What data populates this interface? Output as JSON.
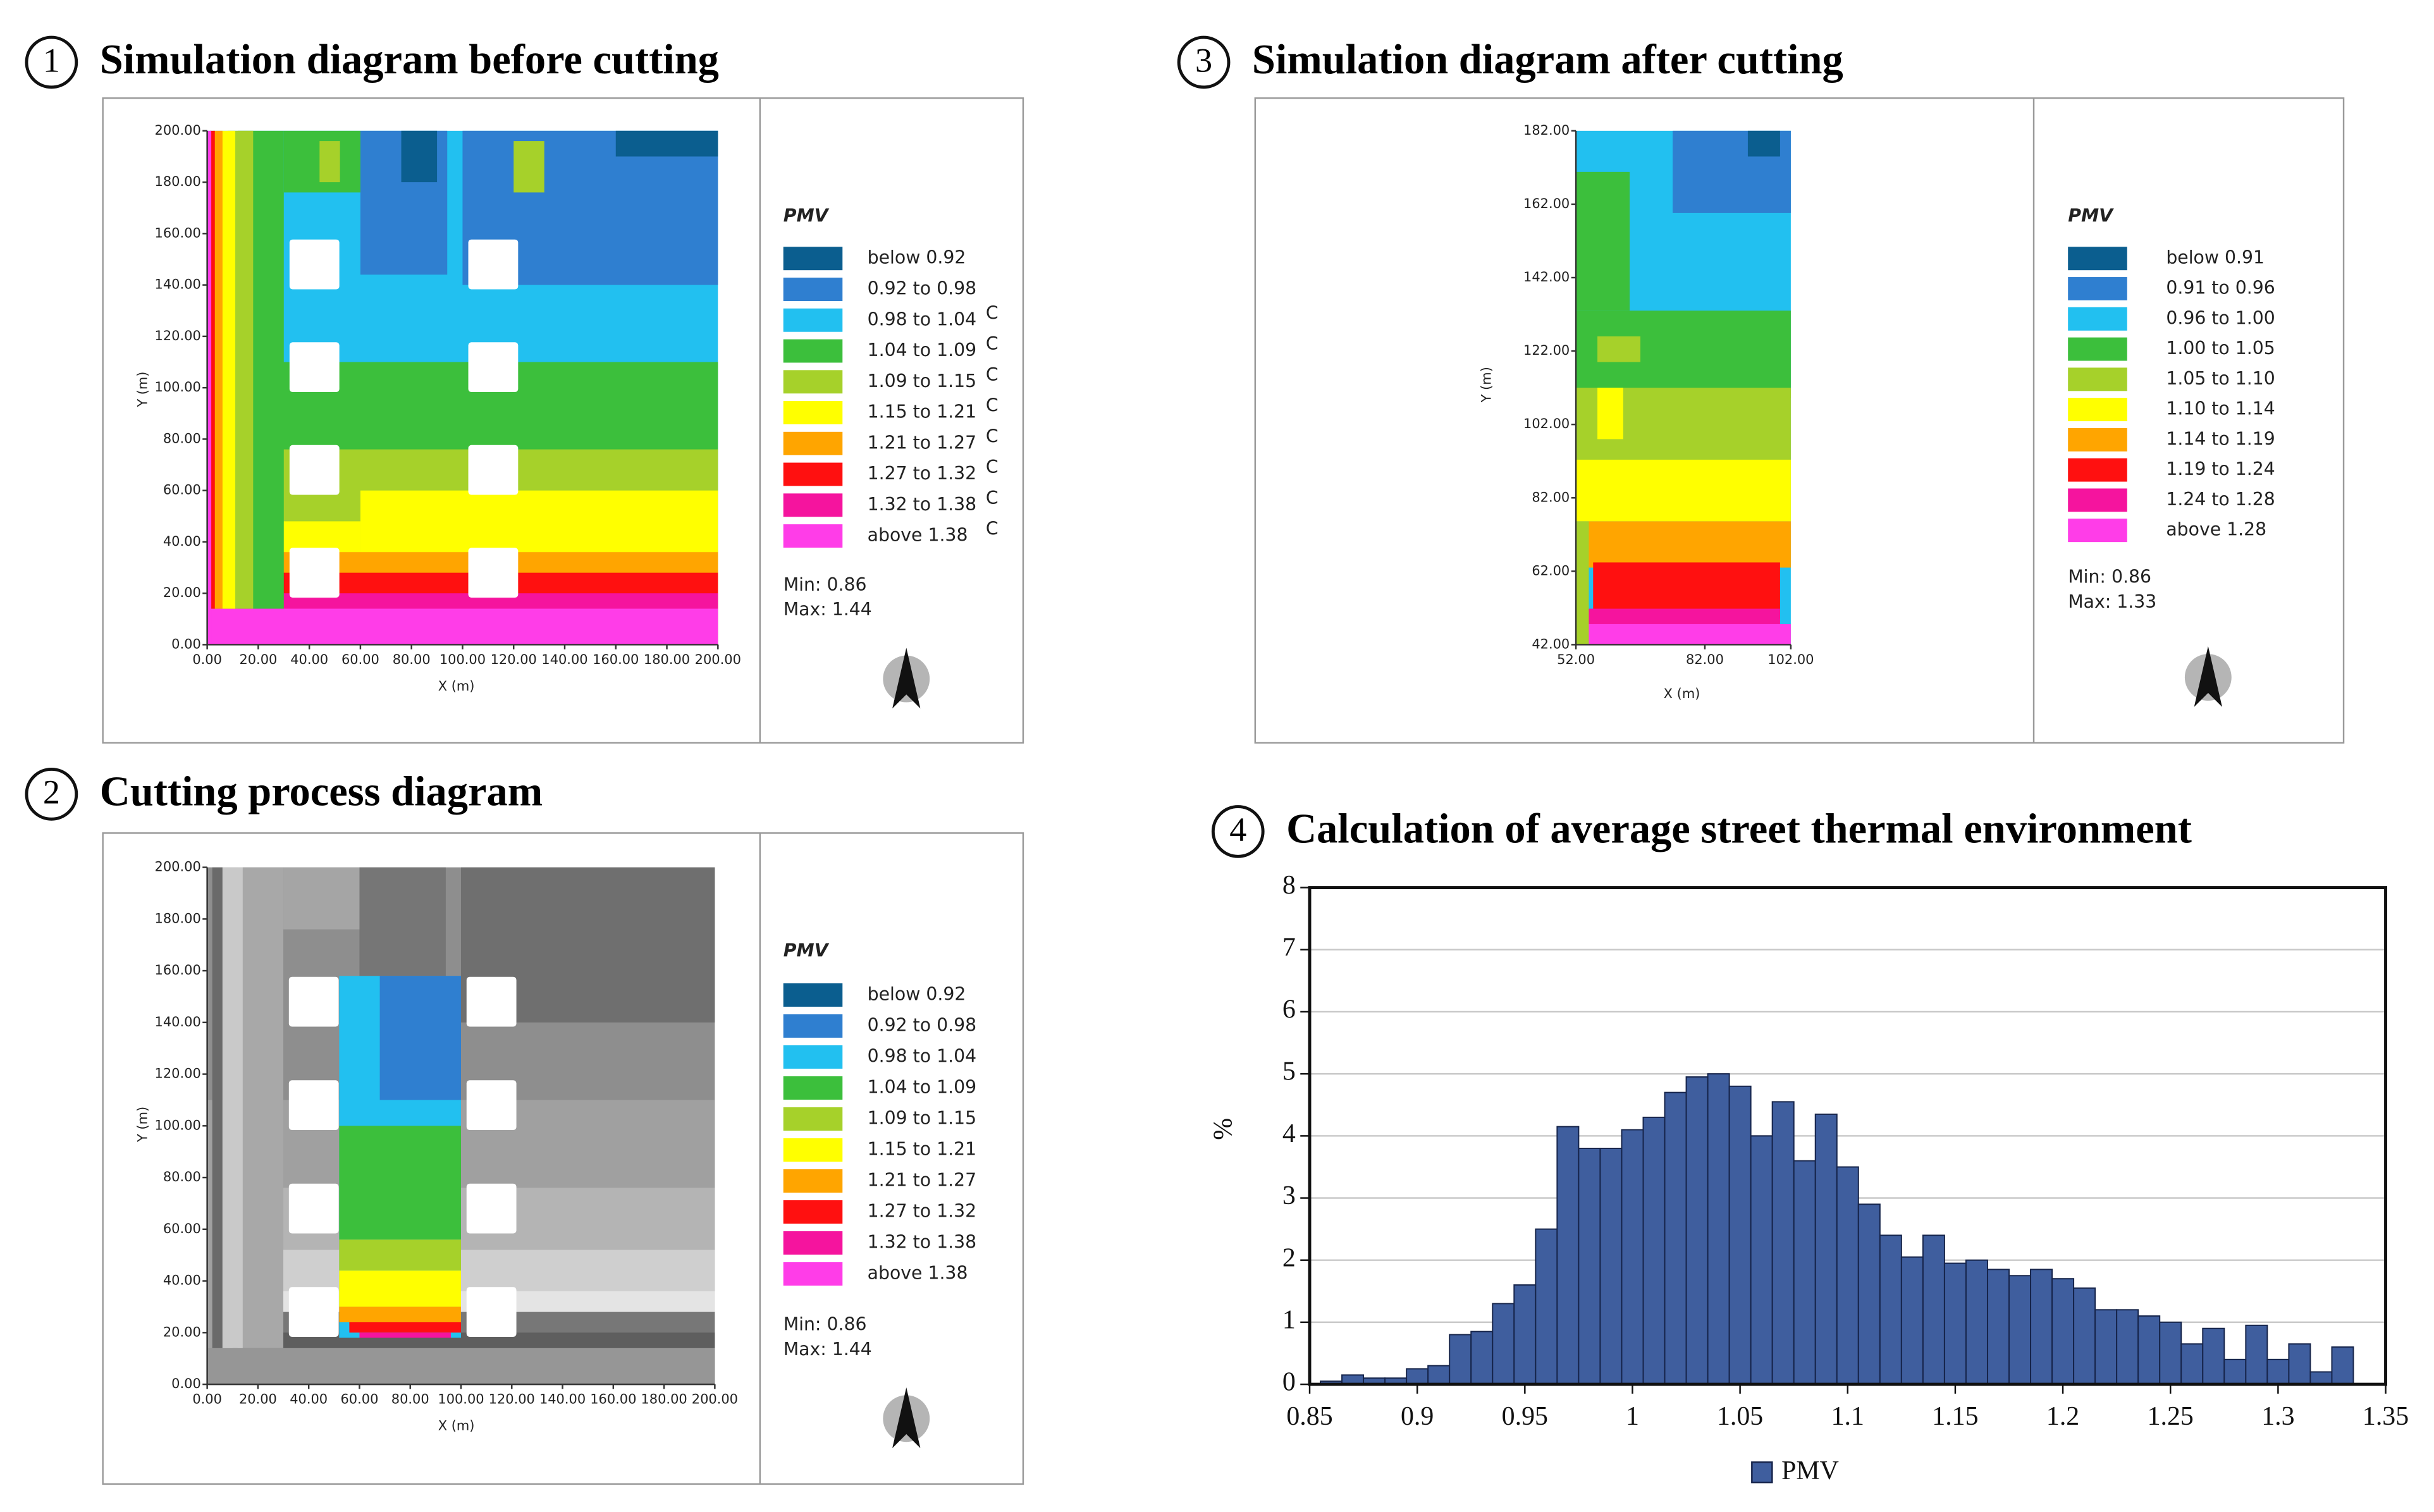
{
  "chart_data": [
    {
      "type": "heatmap",
      "number": "1",
      "title": "Simulation diagram before cutting",
      "x_label": "X (m)",
      "y_label": "Y (m)",
      "xlim": [
        0,
        200
      ],
      "ylim": [
        0,
        200
      ],
      "xticks": [
        {
          "value": 0,
          "label": "0.00"
        },
        {
          "value": 20,
          "label": "20.00"
        },
        {
          "value": 40,
          "label": "40.00"
        },
        {
          "value": 60,
          "label": "60.00"
        },
        {
          "value": 80,
          "label": "80.00"
        },
        {
          "value": 100,
          "label": "100.00"
        },
        {
          "value": 120,
          "label": "120.00"
        },
        {
          "value": 140,
          "label": "140.00"
        },
        {
          "value": 160,
          "label": "160.00"
        },
        {
          "value": 180,
          "label": "180.00"
        },
        {
          "value": 200,
          "label": "200.00"
        }
      ],
      "yticks": [
        {
          "value": 0,
          "label": "0.00"
        },
        {
          "value": 20,
          "label": "20.00"
        },
        {
          "value": 40,
          "label": "40.00"
        },
        {
          "value": 60,
          "label": "60.00"
        },
        {
          "value": 80,
          "label": "80.00"
        },
        {
          "value": 100,
          "label": "100.00"
        },
        {
          "value": 120,
          "label": "120.00"
        },
        {
          "value": 140,
          "label": "140.00"
        },
        {
          "value": 160,
          "label": "160.00"
        },
        {
          "value": 180,
          "label": "180.00"
        },
        {
          "value": 200,
          "label": "200.00"
        }
      ],
      "legend_title": "PMV",
      "legend": [
        {
          "label": "below 0.92",
          "color": "#0b5e8f"
        },
        {
          "label": "0.92 to 0.98",
          "color": "#2f7fd0"
        },
        {
          "label": "0.98 to 1.04",
          "color": "#22c0f0"
        },
        {
          "label": "1.04 to 1.09",
          "color": "#3cbf3c"
        },
        {
          "label": "1.09 to 1.15",
          "color": "#a6d12a"
        },
        {
          "label": "1.15 to 1.21",
          "color": "#ffff00"
        },
        {
          "label": "1.21 to 1.27",
          "color": "#ffa500"
        },
        {
          "label": "1.27 to 1.32",
          "color": "#ff1010"
        },
        {
          "label": "1.32 to 1.38",
          "color": "#f5149e"
        },
        {
          "label": "above 1.38",
          "color": "#ff3de8"
        }
      ],
      "stats": [
        "Min: 0.86",
        "Max: 1.44"
      ],
      "stray_labels": [
        "C",
        "C",
        "C",
        "C",
        "C",
        "C",
        "C",
        "C"
      ]
    },
    {
      "type": "heatmap",
      "number": "2",
      "title": "Cutting process diagram",
      "x_label": "X (m)",
      "y_label": "Y (m)",
      "xlim": [
        0,
        200
      ],
      "ylim": [
        0,
        200
      ],
      "xticks": [
        {
          "value": 0,
          "label": "0.00"
        },
        {
          "value": 20,
          "label": "20.00"
        },
        {
          "value": 40,
          "label": "40.00"
        },
        {
          "value": 60,
          "label": "60.00"
        },
        {
          "value": 80,
          "label": "80.00"
        },
        {
          "value": 100,
          "label": "100.00"
        },
        {
          "value": 120,
          "label": "120.00"
        },
        {
          "value": 140,
          "label": "140.00"
        },
        {
          "value": 160,
          "label": "160.00"
        },
        {
          "value": 180,
          "label": "180.00"
        },
        {
          "value": 200,
          "label": "200.00"
        }
      ],
      "yticks": [
        {
          "value": 0,
          "label": "0.00"
        },
        {
          "value": 20,
          "label": "20.00"
        },
        {
          "value": 40,
          "label": "40.00"
        },
        {
          "value": 60,
          "label": "60.00"
        },
        {
          "value": 80,
          "label": "80.00"
        },
        {
          "value": 100,
          "label": "100.00"
        },
        {
          "value": 120,
          "label": "120.00"
        },
        {
          "value": 140,
          "label": "140.00"
        },
        {
          "value": 160,
          "label": "160.00"
        },
        {
          "value": 180,
          "label": "180.00"
        },
        {
          "value": 200,
          "label": "200.00"
        }
      ],
      "legend_title": "PMV",
      "legend": [
        {
          "label": "below 0.92",
          "color": "#0b5e8f"
        },
        {
          "label": "0.92 to 0.98",
          "color": "#2f7fd0"
        },
        {
          "label": "0.98 to 1.04",
          "color": "#22c0f0"
        },
        {
          "label": "1.04 to 1.09",
          "color": "#3cbf3c"
        },
        {
          "label": "1.09 to 1.15",
          "color": "#a6d12a"
        },
        {
          "label": "1.15 to 1.21",
          "color": "#ffff00"
        },
        {
          "label": "1.21 to 1.27",
          "color": "#ffa500"
        },
        {
          "label": "1.27 to 1.32",
          "color": "#ff1010"
        },
        {
          "label": "1.32 to 1.38",
          "color": "#f5149e"
        },
        {
          "label": "above 1.38",
          "color": "#ff3de8"
        }
      ],
      "stats": [
        "Min: 0.86",
        "Max: 1.44"
      ]
    },
    {
      "type": "heatmap",
      "number": "3",
      "title": "Simulation diagram after cutting",
      "x_label": "X (m)",
      "y_label": "Y (m)",
      "xlim": [
        52,
        102
      ],
      "ylim": [
        42,
        182
      ],
      "xticks": [
        {
          "value": 52,
          "label": "52.00"
        },
        {
          "value": 82,
          "label": "82.00"
        },
        {
          "value": 102,
          "label": "102.00"
        }
      ],
      "yticks": [
        {
          "value": 42,
          "label": "42.00"
        },
        {
          "value": 62,
          "label": "62.00"
        },
        {
          "value": 82,
          "label": "82.00"
        },
        {
          "value": 102,
          "label": "102.00"
        },
        {
          "value": 122,
          "label": "122.00"
        },
        {
          "value": 142,
          "label": "142.00"
        },
        {
          "value": 162,
          "label": "162.00"
        },
        {
          "value": 182,
          "label": "182.00"
        }
      ],
      "legend_title": "PMV",
      "legend": [
        {
          "label": "below 0.91",
          "color": "#0b5e8f"
        },
        {
          "label": "0.91 to 0.96",
          "color": "#2f7fd0"
        },
        {
          "label": "0.96 to 1.00",
          "color": "#22c0f0"
        },
        {
          "label": "1.00 to 1.05",
          "color": "#3cbf3c"
        },
        {
          "label": "1.05 to 1.10",
          "color": "#a6d12a"
        },
        {
          "label": "1.10 to 1.14",
          "color": "#ffff00"
        },
        {
          "label": "1.14 to 1.19",
          "color": "#ffa500"
        },
        {
          "label": "1.19 to 1.24",
          "color": "#ff1010"
        },
        {
          "label": "1.24 to 1.28",
          "color": "#f5149e"
        },
        {
          "label": "above 1.28",
          "color": "#ff3de8"
        }
      ],
      "stats": [
        "Min: 0.86",
        "Max: 1.33"
      ]
    },
    {
      "type": "histogram",
      "number": "4",
      "title": "Calculation of average street thermal environment",
      "y_label": "%",
      "bins": [
        0.855,
        0.865,
        0.875,
        0.885,
        0.895,
        0.905,
        0.915,
        0.925,
        0.935,
        0.945,
        0.955,
        0.965,
        0.975,
        0.985,
        0.995,
        1.005,
        1.015,
        1.025,
        1.035,
        1.045,
        1.055,
        1.065,
        1.075,
        1.085,
        1.095,
        1.105,
        1.115,
        1.125,
        1.135,
        1.145,
        1.155,
        1.165,
        1.175,
        1.185,
        1.195,
        1.205,
        1.215,
        1.225,
        1.235,
        1.245,
        1.255,
        1.265,
        1.275,
        1.285,
        1.295,
        1.305,
        1.315,
        1.325,
        1.335
      ],
      "series": [
        {
          "name": "PMV",
          "color": "#3f5e9e",
          "values": [
            0.05,
            0.15,
            0.1,
            0.1,
            0.25,
            0.3,
            0.8,
            0.85,
            1.3,
            1.6,
            2.5,
            4.15,
            3.8,
            3.8,
            4.1,
            4.3,
            4.7,
            4.95,
            5.0,
            4.8,
            4.0,
            4.55,
            3.6,
            4.35,
            3.5,
            2.9,
            2.4,
            2.05,
            2.4,
            1.95,
            2.0,
            1.85,
            1.75,
            1.85,
            1.7,
            1.55,
            1.2,
            1.2,
            1.1,
            1.0,
            0.65,
            0.9,
            0.4,
            0.95,
            0.4,
            0.65,
            0.2,
            0.6
          ]
        }
      ],
      "xlim": [
        0.85,
        1.35
      ],
      "xticks": [
        0.85,
        0.9,
        0.95,
        1,
        1.05,
        1.1,
        1.15,
        1.2,
        1.25,
        1.3,
        1.35
      ],
      "ylim": [
        0,
        8
      ],
      "yticks": [
        0,
        1,
        2,
        3,
        4,
        5,
        6,
        7,
        8
      ],
      "grid": true
    }
  ]
}
